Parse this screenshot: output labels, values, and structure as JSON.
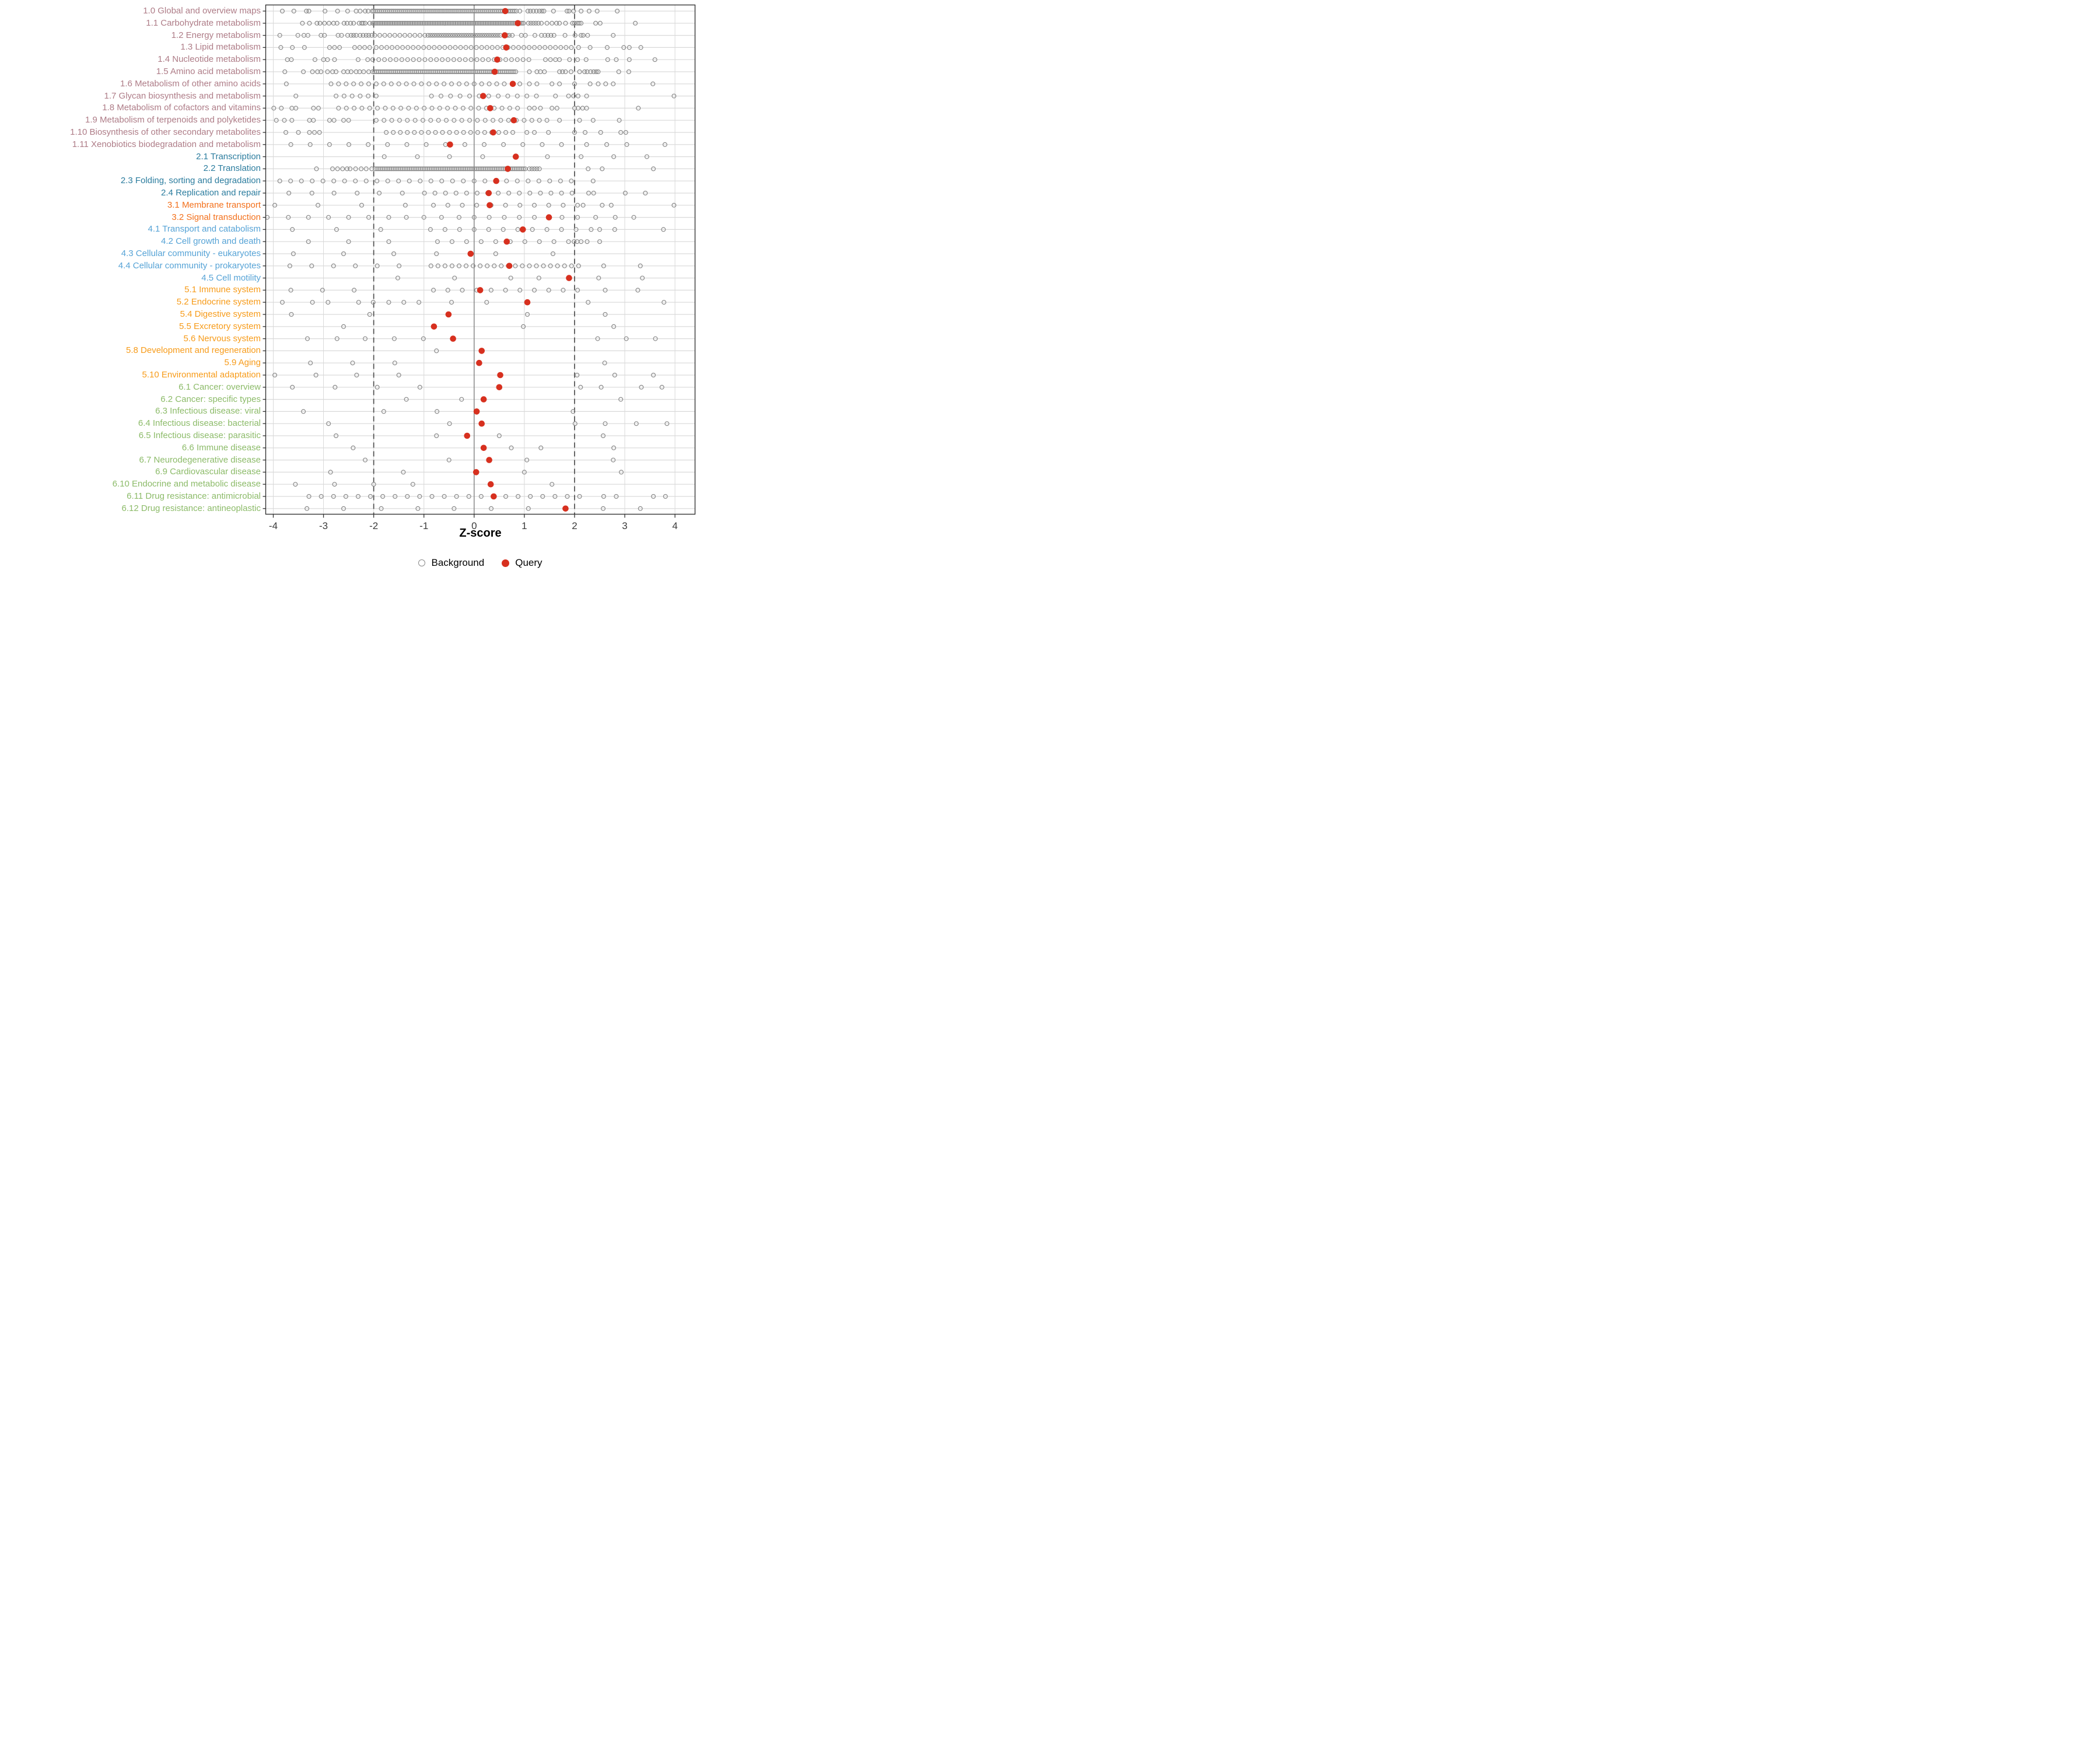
{
  "chart_data": {
    "type": "scatter",
    "title": "",
    "xlabel": "Z-score",
    "ylabel": "",
    "xlim": [
      -4.15,
      4.4
    ],
    "x_ticks": [
      -4,
      -3,
      -2,
      -1,
      0,
      1,
      2,
      3,
      4
    ],
    "grid": "on",
    "reference_lines": {
      "solid_at": 0,
      "dashed_at": [
        -2,
        2
      ]
    },
    "legend_position": "bottom",
    "legend": [
      {
        "label": "Background",
        "marker": "open-gray-circle"
      },
      {
        "label": "Query",
        "marker": "filled-red-circle"
      }
    ],
    "group_colors": {
      "metabolism": "#AE7C87",
      "genetic": "#2B7C9E",
      "environmental": "#F3701B",
      "cellular": "#56A3D6",
      "organismal": "#F79B19",
      "disease": "#8CBB69"
    },
    "point_colors": {
      "background": "#8A8A8A",
      "query": "#D7301F"
    },
    "rows": [
      {
        "label": "1.0 Global and overview maps",
        "group": "metabolism",
        "query": 0.62,
        "bg_ranges": [
          [
            -2.0,
            0.85,
            0.04
          ]
        ],
        "bg_points": [
          -3.82,
          -3.59,
          -3.34,
          -3.29,
          -2.97,
          -2.72,
          -2.52,
          -2.35,
          -2.27,
          -2.17,
          -2.11,
          -2.03,
          0.91,
          1.07,
          1.12,
          1.18,
          1.24,
          1.3,
          1.35,
          1.39,
          1.58,
          1.85,
          1.89,
          1.98,
          2.13,
          2.29,
          2.45,
          2.85
        ]
      },
      {
        "label": "1.1 Carbohydrate metabolism",
        "group": "metabolism",
        "query": 0.87,
        "bg_ranges": [
          [
            -2.02,
            1.0,
            0.033
          ]
        ],
        "bg_points": [
          -3.42,
          -3.28,
          -3.13,
          -3.07,
          -2.98,
          -2.89,
          -2.8,
          -2.73,
          -2.59,
          -2.53,
          -2.46,
          -2.4,
          -2.29,
          -2.24,
          -2.21,
          -2.17,
          -2.08,
          1.08,
          1.13,
          1.18,
          1.23,
          1.28,
          1.34,
          1.45,
          1.55,
          1.64,
          1.7,
          1.82,
          1.96,
          2.0,
          2.05,
          2.09,
          2.13,
          2.42,
          2.51,
          3.21
        ]
      },
      {
        "label": "1.2 Energy metabolism",
        "group": "metabolism",
        "query": 0.61,
        "bg_ranges": [
          [
            -1.98,
            -0.95,
            0.1
          ],
          [
            -0.92,
            0.55,
            0.045
          ]
        ],
        "bg_points": [
          -3.87,
          -3.51,
          -3.39,
          -3.31,
          -3.05,
          -2.98,
          -2.71,
          -2.64,
          -2.52,
          -2.45,
          -2.4,
          -2.35,
          -2.27,
          -2.21,
          -2.15,
          -2.1,
          -2.04,
          0.66,
          0.7,
          0.76,
          0.94,
          1.02,
          1.21,
          1.34,
          1.41,
          1.47,
          1.53,
          1.59,
          1.81,
          2.01,
          2.13,
          2.17,
          2.26,
          2.77
        ]
      },
      {
        "label": "1.3 Lipid metabolism",
        "group": "metabolism",
        "query": 0.64,
        "bg_ranges": [
          [
            -1.95,
            2.0,
            0.105
          ]
        ],
        "bg_points": [
          -3.85,
          -3.62,
          -3.38,
          -2.88,
          -2.78,
          -2.68,
          -2.38,
          -2.28,
          -2.18,
          -2.08,
          2.08,
          2.31,
          2.65,
          2.98,
          3.09,
          3.32
        ]
      },
      {
        "label": "1.4 Nucleotide metabolism",
        "group": "metabolism",
        "query": 0.46,
        "bg_ranges": [
          [
            -1.9,
            1.2,
            0.115
          ]
        ],
        "bg_points": [
          -3.72,
          -3.64,
          -3.17,
          -3.0,
          -2.92,
          -2.78,
          -2.31,
          -2.12,
          -2.02,
          1.42,
          1.52,
          1.62,
          1.7,
          1.9,
          2.06,
          2.23,
          2.66,
          2.83,
          3.09,
          3.6
        ]
      },
      {
        "label": "1.5 Amino acid metabolism",
        "group": "metabolism",
        "query": 0.41,
        "bg_ranges": [
          [
            -2.02,
            0.84,
            0.038
          ]
        ],
        "bg_points": [
          -3.77,
          -3.4,
          -3.22,
          -3.12,
          -3.05,
          -2.92,
          -2.82,
          -2.75,
          -2.6,
          -2.52,
          -2.45,
          -2.35,
          -2.28,
          -2.2,
          -2.1,
          1.1,
          1.25,
          1.32,
          1.4,
          1.7,
          1.76,
          1.82,
          1.93,
          2.1,
          2.2,
          2.25,
          2.32,
          2.38,
          2.43,
          2.47,
          2.88,
          3.08
        ]
      },
      {
        "label": "1.6 Metabolism of other amino acids",
        "group": "metabolism",
        "query": 0.77,
        "bg_ranges": [
          [
            -2.85,
            0.6,
            0.15
          ]
        ],
        "bg_points": [
          -3.74,
          0.91,
          1.1,
          1.25,
          1.55,
          1.7,
          2.0,
          2.31,
          2.47,
          2.62,
          2.77,
          3.56
        ]
      },
      {
        "label": "1.7 Glycan biosynthesis and metabolism",
        "group": "metabolism",
        "query": 0.18,
        "bg_ranges": [
          [
            -2.75,
            -1.95,
            0.16
          ],
          [
            -0.85,
            1.4,
            0.19
          ]
        ],
        "bg_points": [
          -3.55,
          1.62,
          1.88,
          1.98,
          2.07,
          2.24,
          3.98
        ]
      },
      {
        "label": "1.8 Metabolism of cofactors and vitamins",
        "group": "metabolism",
        "query": 0.32,
        "bg_ranges": [
          [
            -2.7,
            0.95,
            0.155
          ]
        ],
        "bg_points": [
          -3.99,
          -3.84,
          -3.63,
          -3.55,
          -3.2,
          -3.1,
          1.1,
          1.2,
          1.32,
          1.55,
          1.65,
          2.0,
          2.07,
          2.16,
          2.24,
          3.27
        ]
      },
      {
        "label": "1.9 Metabolism of terpenoids and polyketides",
        "group": "metabolism",
        "query": 0.79,
        "bg_ranges": [
          [
            -1.95,
            1.15,
            0.155
          ]
        ],
        "bg_points": [
          -3.94,
          -3.78,
          -3.63,
          -3.28,
          -3.2,
          -2.88,
          -2.79,
          -2.6,
          -2.5,
          1.3,
          1.45,
          1.7,
          2.1,
          2.37,
          2.89
        ]
      },
      {
        "label": "1.10 Biosynthesis of other secondary metabolites",
        "group": "metabolism",
        "query": 0.38,
        "bg_ranges": [
          [
            -1.75,
            0.85,
            0.14
          ]
        ],
        "bg_points": [
          -3.75,
          -3.5,
          -3.28,
          -3.18,
          -3.08,
          1.05,
          1.2,
          1.48,
          2.0,
          2.21,
          2.52,
          2.92,
          3.02
        ]
      },
      {
        "label": "1.11 Xenobiotics biodegradation and metabolism",
        "group": "metabolism",
        "query": -0.48,
        "bg_ranges": [
          [
            -3.65,
            1.9,
            0.385
          ]
        ],
        "bg_points": [
          2.24,
          2.64,
          3.04,
          3.8
        ]
      },
      {
        "label": "2.1 Transcription",
        "group": "genetic",
        "query": 0.83,
        "bg_ranges": [],
        "bg_points": [
          -1.79,
          -1.13,
          -0.49,
          0.17,
          1.46,
          2.13,
          2.78,
          3.44
        ]
      },
      {
        "label": "2.2 Translation",
        "group": "genetic",
        "query": 0.67,
        "bg_ranges": [
          [
            -1.97,
            1.02,
            0.036
          ]
        ],
        "bg_points": [
          -3.14,
          -2.82,
          -2.72,
          -2.62,
          -2.53,
          -2.47,
          -2.36,
          -2.25,
          -2.15,
          -2.04,
          1.1,
          1.15,
          1.2,
          1.25,
          1.3,
          2.27,
          2.55,
          3.57
        ]
      },
      {
        "label": "2.3 Folding, sorting and degradation",
        "group": "genetic",
        "query": 0.44,
        "bg_ranges": [
          [
            -3.87,
            2.1,
            0.215
          ]
        ],
        "bg_points": [
          2.37
        ]
      },
      {
        "label": "2.4 Replication and repair",
        "group": "genetic",
        "query": 0.29,
        "bg_ranges": [
          [
            -0.99,
            2.12,
            0.21
          ]
        ],
        "bg_points": [
          -3.69,
          -3.23,
          -2.79,
          -2.33,
          -1.89,
          -1.43,
          2.28,
          2.38,
          3.01,
          3.41
        ]
      },
      {
        "label": "3.1 Membrane transport",
        "group": "environmental",
        "query": 0.31,
        "bg_ranges": [
          [
            -0.81,
            2.06,
            0.287
          ]
        ],
        "bg_points": [
          -3.97,
          -3.11,
          -2.24,
          -1.37,
          2.17,
          2.55,
          2.73,
          3.98
        ]
      },
      {
        "label": "3.2 Signal transduction",
        "group": "environmental",
        "query": 1.49,
        "bg_ranges": [],
        "bg_points": [
          -4.12,
          -3.7,
          -3.3,
          -2.9,
          -2.5,
          -2.1,
          -1.7,
          -1.35,
          -1.0,
          -0.65,
          -0.3,
          0.0,
          0.3,
          0.6,
          0.9,
          1.2,
          1.75,
          2.06,
          2.42,
          2.81,
          3.18
        ]
      },
      {
        "label": "4.1 Transport and catabolism",
        "group": "cellular",
        "query": 0.97,
        "bg_ranges": [
          [
            -0.87,
            2.16,
            0.29
          ]
        ],
        "bg_points": [
          -3.62,
          -2.74,
          -1.86,
          2.33,
          2.5,
          2.8,
          3.77
        ]
      },
      {
        "label": "4.2 Cell growth and death",
        "group": "cellular",
        "query": 0.65,
        "bg_ranges": [
          [
            -0.73,
            1.88,
            0.29
          ]
        ],
        "bg_points": [
          -3.3,
          -2.5,
          -1.7,
          1.99,
          2.05,
          2.13,
          2.25,
          2.5
        ]
      },
      {
        "label": "4.3 Cellular community - eukaryotes",
        "group": "cellular",
        "query": -0.07,
        "bg_ranges": [],
        "bg_points": [
          -3.6,
          -2.6,
          -1.6,
          -0.75,
          0.43,
          1.57
        ]
      },
      {
        "label": "4.4 Cellular community - prokaryotes",
        "group": "cellular",
        "query": 0.7,
        "bg_ranges": [
          [
            -3.67,
            -1.07,
            0.435
          ],
          [
            -0.86,
            2.2,
            0.14
          ]
        ],
        "bg_points": [
          2.58,
          3.31
        ]
      },
      {
        "label": "4.5 Cell motility",
        "group": "cellular",
        "query": 1.89,
        "bg_ranges": [],
        "bg_points": [
          -1.52,
          -0.39,
          0.73,
          1.29,
          2.48,
          3.35
        ]
      },
      {
        "label": "5.1 Immune system",
        "group": "organismal",
        "query": 0.12,
        "bg_ranges": [
          [
            -0.81,
            2.06,
            0.287
          ]
        ],
        "bg_points": [
          -3.65,
          -3.02,
          -2.39,
          2.61,
          3.26
        ]
      },
      {
        "label": "5.2 Endocrine system",
        "group": "organismal",
        "query": 1.06,
        "bg_ranges": [],
        "bg_points": [
          -3.82,
          -3.22,
          -2.91,
          -2.3,
          -2.01,
          -1.7,
          -1.4,
          -1.1,
          -0.45,
          0.25,
          2.27,
          3.78
        ]
      },
      {
        "label": "5.4 Digestive system",
        "group": "organismal",
        "query": -0.51,
        "bg_ranges": [],
        "bg_points": [
          -3.64,
          -2.08,
          1.06,
          2.61
        ]
      },
      {
        "label": "5.5 Excretory system",
        "group": "organismal",
        "query": -0.8,
        "bg_ranges": [],
        "bg_points": [
          -2.6,
          0.98,
          2.78
        ]
      },
      {
        "label": "5.6 Nervous system",
        "group": "organismal",
        "query": -0.42,
        "bg_ranges": [],
        "bg_points": [
          -3.32,
          -2.73,
          -2.17,
          -1.59,
          -1.01,
          2.46,
          3.03,
          3.61
        ]
      },
      {
        "label": "5.8 Development and regeneration",
        "group": "organismal",
        "query": 0.15,
        "bg_ranges": [],
        "bg_points": [
          -0.75
        ]
      },
      {
        "label": "5.9 Aging",
        "group": "organismal",
        "query": 0.1,
        "bg_ranges": [],
        "bg_points": [
          -3.26,
          -2.42,
          -1.58,
          2.6
        ]
      },
      {
        "label": "5.10 Environmental adaptation",
        "group": "organismal",
        "query": 0.52,
        "bg_ranges": [],
        "bg_points": [
          -3.97,
          -3.15,
          -2.34,
          -1.5,
          2.05,
          2.8,
          3.57
        ]
      },
      {
        "label": "6.1 Cancer: overview",
        "group": "disease",
        "query": 0.5,
        "bg_ranges": [],
        "bg_points": [
          -3.62,
          -2.77,
          -1.93,
          -1.08,
          2.12,
          2.53,
          3.33,
          3.74
        ]
      },
      {
        "label": "6.2 Cancer: specific types",
        "group": "disease",
        "query": 0.19,
        "bg_ranges": [],
        "bg_points": [
          -1.35,
          -0.25,
          2.92
        ]
      },
      {
        "label": "6.3 Infectious disease: viral",
        "group": "disease",
        "query": 0.05,
        "bg_ranges": [],
        "bg_points": [
          -3.4,
          -1.8,
          -0.74,
          1.97
        ]
      },
      {
        "label": "6.4 Infectious disease: bacterial",
        "group": "disease",
        "query": 0.15,
        "bg_ranges": [],
        "bg_points": [
          -2.9,
          -0.49,
          2.01,
          2.61,
          3.23,
          3.84
        ]
      },
      {
        "label": "6.5 Infectious disease: parasitic",
        "group": "disease",
        "query": -0.14,
        "bg_ranges": [],
        "bg_points": [
          -2.75,
          -0.75,
          0.5,
          2.57
        ]
      },
      {
        "label": "6.6 Immune disease",
        "group": "disease",
        "query": 0.19,
        "bg_ranges": [],
        "bg_points": [
          -2.41,
          0.74,
          1.33,
          2.78
        ]
      },
      {
        "label": "6.7 Neurodegenerative disease",
        "group": "disease",
        "query": 0.3,
        "bg_ranges": [],
        "bg_points": [
          -2.17,
          -0.5,
          1.05,
          2.77
        ]
      },
      {
        "label": "6.9 Cardiovascular disease",
        "group": "disease",
        "query": 0.04,
        "bg_ranges": [],
        "bg_points": [
          -2.86,
          -1.41,
          1.0,
          2.93
        ]
      },
      {
        "label": "6.10 Endocrine and metabolic disease",
        "group": "disease",
        "query": 0.33,
        "bg_ranges": [],
        "bg_points": [
          -3.56,
          -2.78,
          -2.0,
          -1.22,
          1.55
        ]
      },
      {
        "label": "6.11 Drug resistance: antimicrobial",
        "group": "disease",
        "query": 0.39,
        "bg_ranges": [
          [
            -3.29,
            2.1,
            0.245
          ]
        ],
        "bg_points": [
          2.58,
          2.83,
          3.57,
          3.81
        ]
      },
      {
        "label": "6.12 Drug resistance: antineoplastic",
        "group": "disease",
        "query": 1.82,
        "bg_ranges": [],
        "bg_points": [
          -3.33,
          -2.6,
          -1.85,
          -1.12,
          -0.4,
          0.34,
          1.08,
          2.57,
          3.31
        ]
      }
    ],
    "style_colors": {
      "grid": "#D9D9D9",
      "zero_line": "#7F7F7F",
      "dashed_line": "#4D4D4D",
      "panel_border": "#333333",
      "tick": "#333333",
      "tick_label": "#3C3C3C"
    }
  }
}
